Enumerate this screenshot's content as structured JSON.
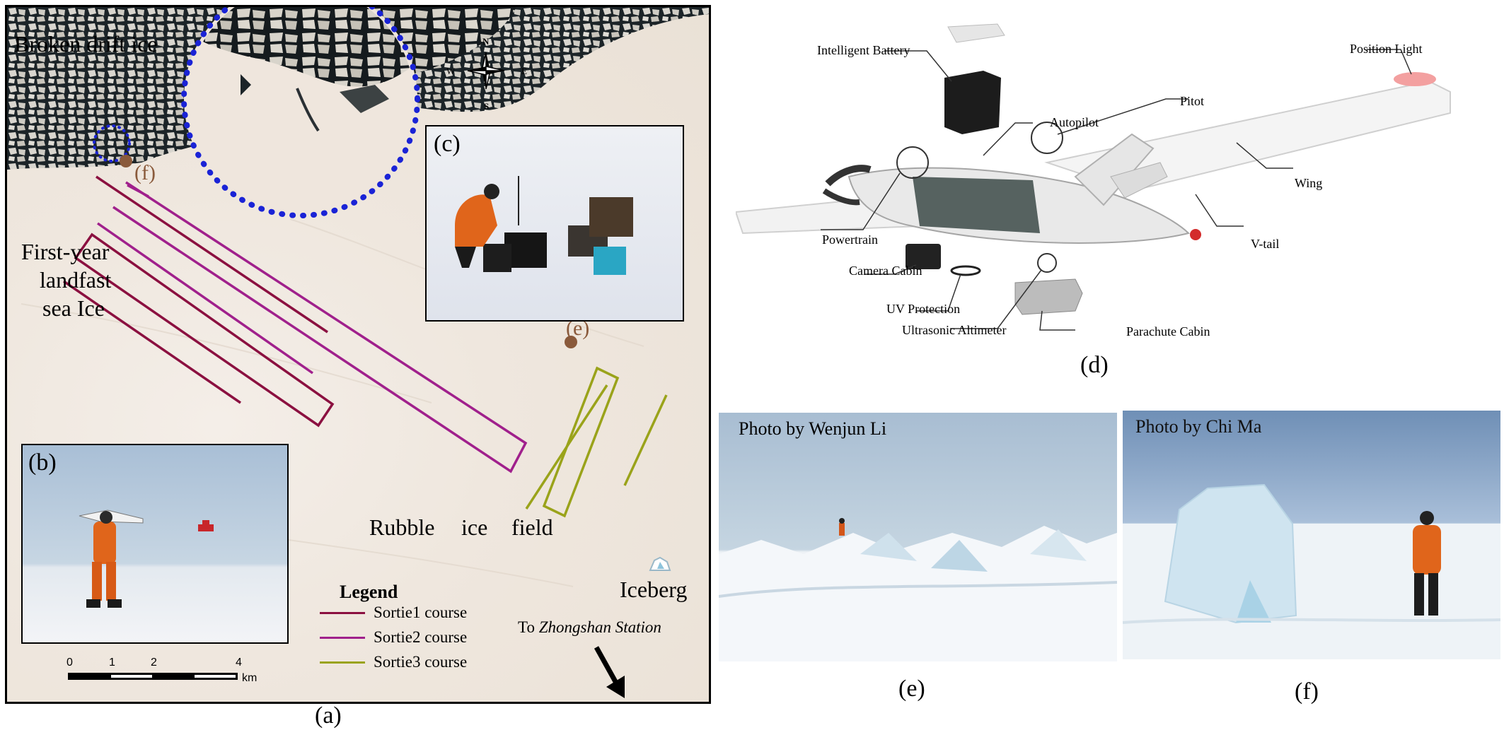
{
  "panels": {
    "a": "(a)",
    "b": "(b)",
    "c": "(c)",
    "d": "(d)",
    "e": "(e)",
    "f": "(f)"
  },
  "map": {
    "labels": {
      "broken_drift_ice": "Broken drift ice",
      "first_year_line1": "First-year",
      "first_year_line2": "landfast",
      "first_year_line3": "sea Ice",
      "rubble": "Rubble",
      "ice": "ice",
      "field": "field",
      "iceberg": "Iceberg",
      "to_station_prefix": "To",
      "to_station_name": "Zhongshan  Station",
      "marker_e": "(e)",
      "marker_f": "(f)"
    },
    "compass": {
      "n": "N",
      "s": "S",
      "e": "E",
      "w": "W"
    },
    "scale_bar": {
      "ticks": [
        "0",
        "1",
        "2",
        "4"
      ],
      "unit": "km"
    },
    "legend": {
      "title": "Legend",
      "items": [
        {
          "label": "Sortie1 course",
          "color": "#8b1040"
        },
        {
          "label": "Sortie2 course",
          "color": "#a0208c"
        },
        {
          "label": "Sortie3 course",
          "color": "#9aa31a"
        }
      ]
    },
    "colors": {
      "highlight_circle": "#1a23d6",
      "marker": "#8a5a3b"
    }
  },
  "uav": {
    "labels": {
      "intelligent_battery": "Intelligent Battery",
      "autopilot": "Autopilot",
      "pitot": "Pitot",
      "position_light": "Position Light",
      "wing": "Wing",
      "v_tail": "V-tail",
      "powertrain": "Powertrain",
      "camera_cabin": "Camera Cabin",
      "uv_protection": "UV Protection",
      "ultrasonic_altimeter": "Ultrasonic Altimeter",
      "parachute_cabin": "Parachute Cabin"
    }
  },
  "photos": {
    "e_credit": "Photo by Wenjun Li",
    "f_credit": "Photo by Chi Ma"
  }
}
